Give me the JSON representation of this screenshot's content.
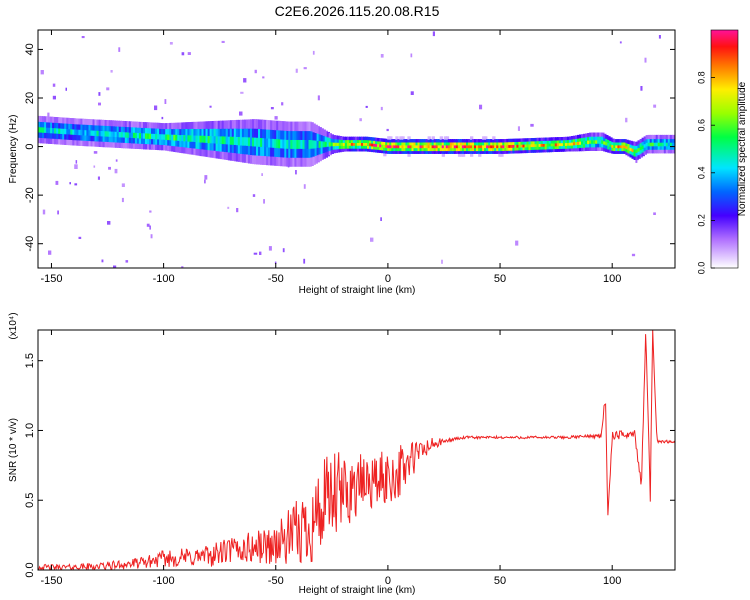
{
  "title": "C2E6.2026.115.20.08.R15",
  "colors": {
    "snr_line": "#ee2222",
    "spectrogram_background": "#ffffff"
  },
  "chart_data": [
    {
      "type": "heatmap",
      "title": "C2E6.2026.115.20.08.R15",
      "xlabel": "Height of straight line (km)",
      "ylabel": "Frequency (Hz)",
      "xlim": [
        -156,
        128
      ],
      "ylim": [
        -50,
        48
      ],
      "xticks": [
        -150,
        -100,
        -50,
        0,
        50,
        100
      ],
      "yticks": [
        -40,
        -20,
        0,
        20,
        40
      ],
      "grid": false,
      "ridge": {
        "description_free": true,
        "x": [
          -156,
          -140,
          -120,
          -100,
          -80,
          -60,
          -45,
          -35,
          -25,
          -20,
          -10,
          0,
          20,
          50,
          80,
          90,
          95,
          100,
          105,
          110,
          115,
          128
        ],
        "center_hz": [
          7,
          6,
          5,
          4,
          3,
          2,
          1,
          1,
          1,
          1,
          1,
          0,
          0,
          0,
          1,
          2,
          2,
          0,
          0,
          -2,
          1,
          1
        ],
        "half_width_hz": [
          3,
          3,
          3,
          3,
          4,
          5,
          5,
          5,
          2,
          1.6,
          1.6,
          1.6,
          1.6,
          1.6,
          1.6,
          2,
          2,
          1.6,
          1.6,
          2,
          2,
          2
        ],
        "amplitude": [
          0.45,
          0.4,
          0.45,
          0.5,
          0.5,
          0.45,
          0.45,
          0.4,
          0.55,
          0.7,
          0.8,
          0.85,
          0.9,
          0.85,
          0.7,
          0.6,
          0.5,
          0.7,
          0.8,
          0.6,
          0.5,
          0.45
        ]
      },
      "colorbar": {
        "label": "Normalized spectral amplitude",
        "ticks": [
          "0.0",
          "0.2",
          "0.4",
          "0.6",
          "0.8"
        ],
        "range": [
          0,
          1
        ],
        "palette": "rainbow"
      }
    },
    {
      "type": "line",
      "xlabel": "Height of straight line (km)",
      "ylabel": "SNR (10 * v/v)",
      "multiplier": "(x10⁴)",
      "xlim": [
        -156,
        128
      ],
      "ylim": [
        0,
        1.72
      ],
      "xticks": [
        -150,
        -100,
        -50,
        0,
        50,
        100
      ],
      "yticks": [
        "0.0",
        "0.5",
        "1.0",
        "1.5"
      ],
      "grid": false,
      "series": [
        {
          "x": [
            -156,
            -140,
            -125,
            -110,
            -100,
            -90,
            -80,
            -70,
            -60,
            -50,
            -45,
            -40,
            -35,
            -30,
            -25,
            -20,
            -15,
            -10,
            -5,
            0,
            5,
            10,
            15,
            20,
            25,
            30,
            35,
            40,
            50,
            60,
            70,
            80,
            90,
            95,
            97,
            98,
            100,
            105,
            110,
            113,
            115,
            117,
            118,
            120,
            125,
            128
          ],
          "values": [
            0.02,
            0.02,
            0.03,
            0.05,
            0.08,
            0.09,
            0.1,
            0.14,
            0.16,
            0.18,
            0.22,
            0.26,
            0.33,
            0.42,
            0.5,
            0.55,
            0.6,
            0.62,
            0.64,
            0.66,
            0.7,
            0.78,
            0.85,
            0.9,
            0.92,
            0.94,
            0.95,
            0.95,
            0.95,
            0.95,
            0.95,
            0.95,
            0.96,
            0.96,
            1.25,
            0.35,
            0.96,
            0.97,
            0.98,
            0.6,
            1.72,
            0.52,
            1.72,
            0.92,
            0.92,
            0.92
          ],
          "noise_envelope": [
            0.02,
            0.02,
            0.03,
            0.04,
            0.06,
            0.07,
            0.08,
            0.1,
            0.12,
            0.15,
            0.2,
            0.25,
            0.3,
            0.35,
            0.35,
            0.3,
            0.25,
            0.2,
            0.2,
            0.2,
            0.2,
            0.15,
            0.1,
            0.05,
            0.02,
            0.01,
            0.01,
            0.01,
            0.01,
            0.01,
            0.01,
            0.01,
            0.01,
            0.02,
            0.03,
            0.03,
            0.03,
            0.03,
            0.03,
            0.03,
            0.03,
            0.03,
            0.03,
            0.01,
            0.01,
            0.01
          ]
        }
      ]
    }
  ]
}
